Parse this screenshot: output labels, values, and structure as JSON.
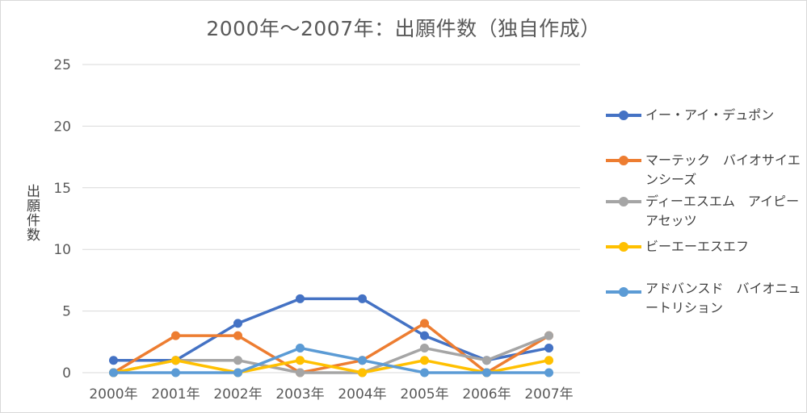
{
  "chart_data": {
    "type": "line",
    "title": "2000年～2007年：出願件数（独自作成）",
    "ylabel": "出願件数",
    "xlabel": "",
    "categories": [
      "2000年",
      "2001年",
      "2002年",
      "2003年",
      "2004年",
      "2005年",
      "2006年",
      "2007年"
    ],
    "ylim": [
      0,
      25
    ],
    "yticks": [
      0,
      5,
      10,
      15,
      20,
      25
    ],
    "grid": true,
    "legend_position": "right",
    "series": [
      {
        "name": "イー・アイ・デュポン",
        "color": "#4472c4",
        "values": [
          1,
          1,
          4,
          6,
          6,
          3,
          1,
          2
        ]
      },
      {
        "name": "マーテック　バイオサイエンシーズ",
        "color": "#ed7d31",
        "values": [
          0,
          3,
          3,
          0,
          1,
          4,
          0,
          3
        ]
      },
      {
        "name": "ディーエスエム　アイピー　アセッツ",
        "color": "#a5a5a5",
        "values": [
          0,
          1,
          1,
          0,
          0,
          2,
          1,
          3
        ]
      },
      {
        "name": "ビーエーエスエフ",
        "color": "#ffc000",
        "values": [
          0,
          1,
          0,
          1,
          0,
          1,
          0,
          1
        ]
      },
      {
        "name": "アドバンスド　バイオニュートリション",
        "color": "#5b9bd5",
        "values": [
          0,
          0,
          0,
          2,
          1,
          0,
          0,
          0
        ]
      }
    ]
  }
}
